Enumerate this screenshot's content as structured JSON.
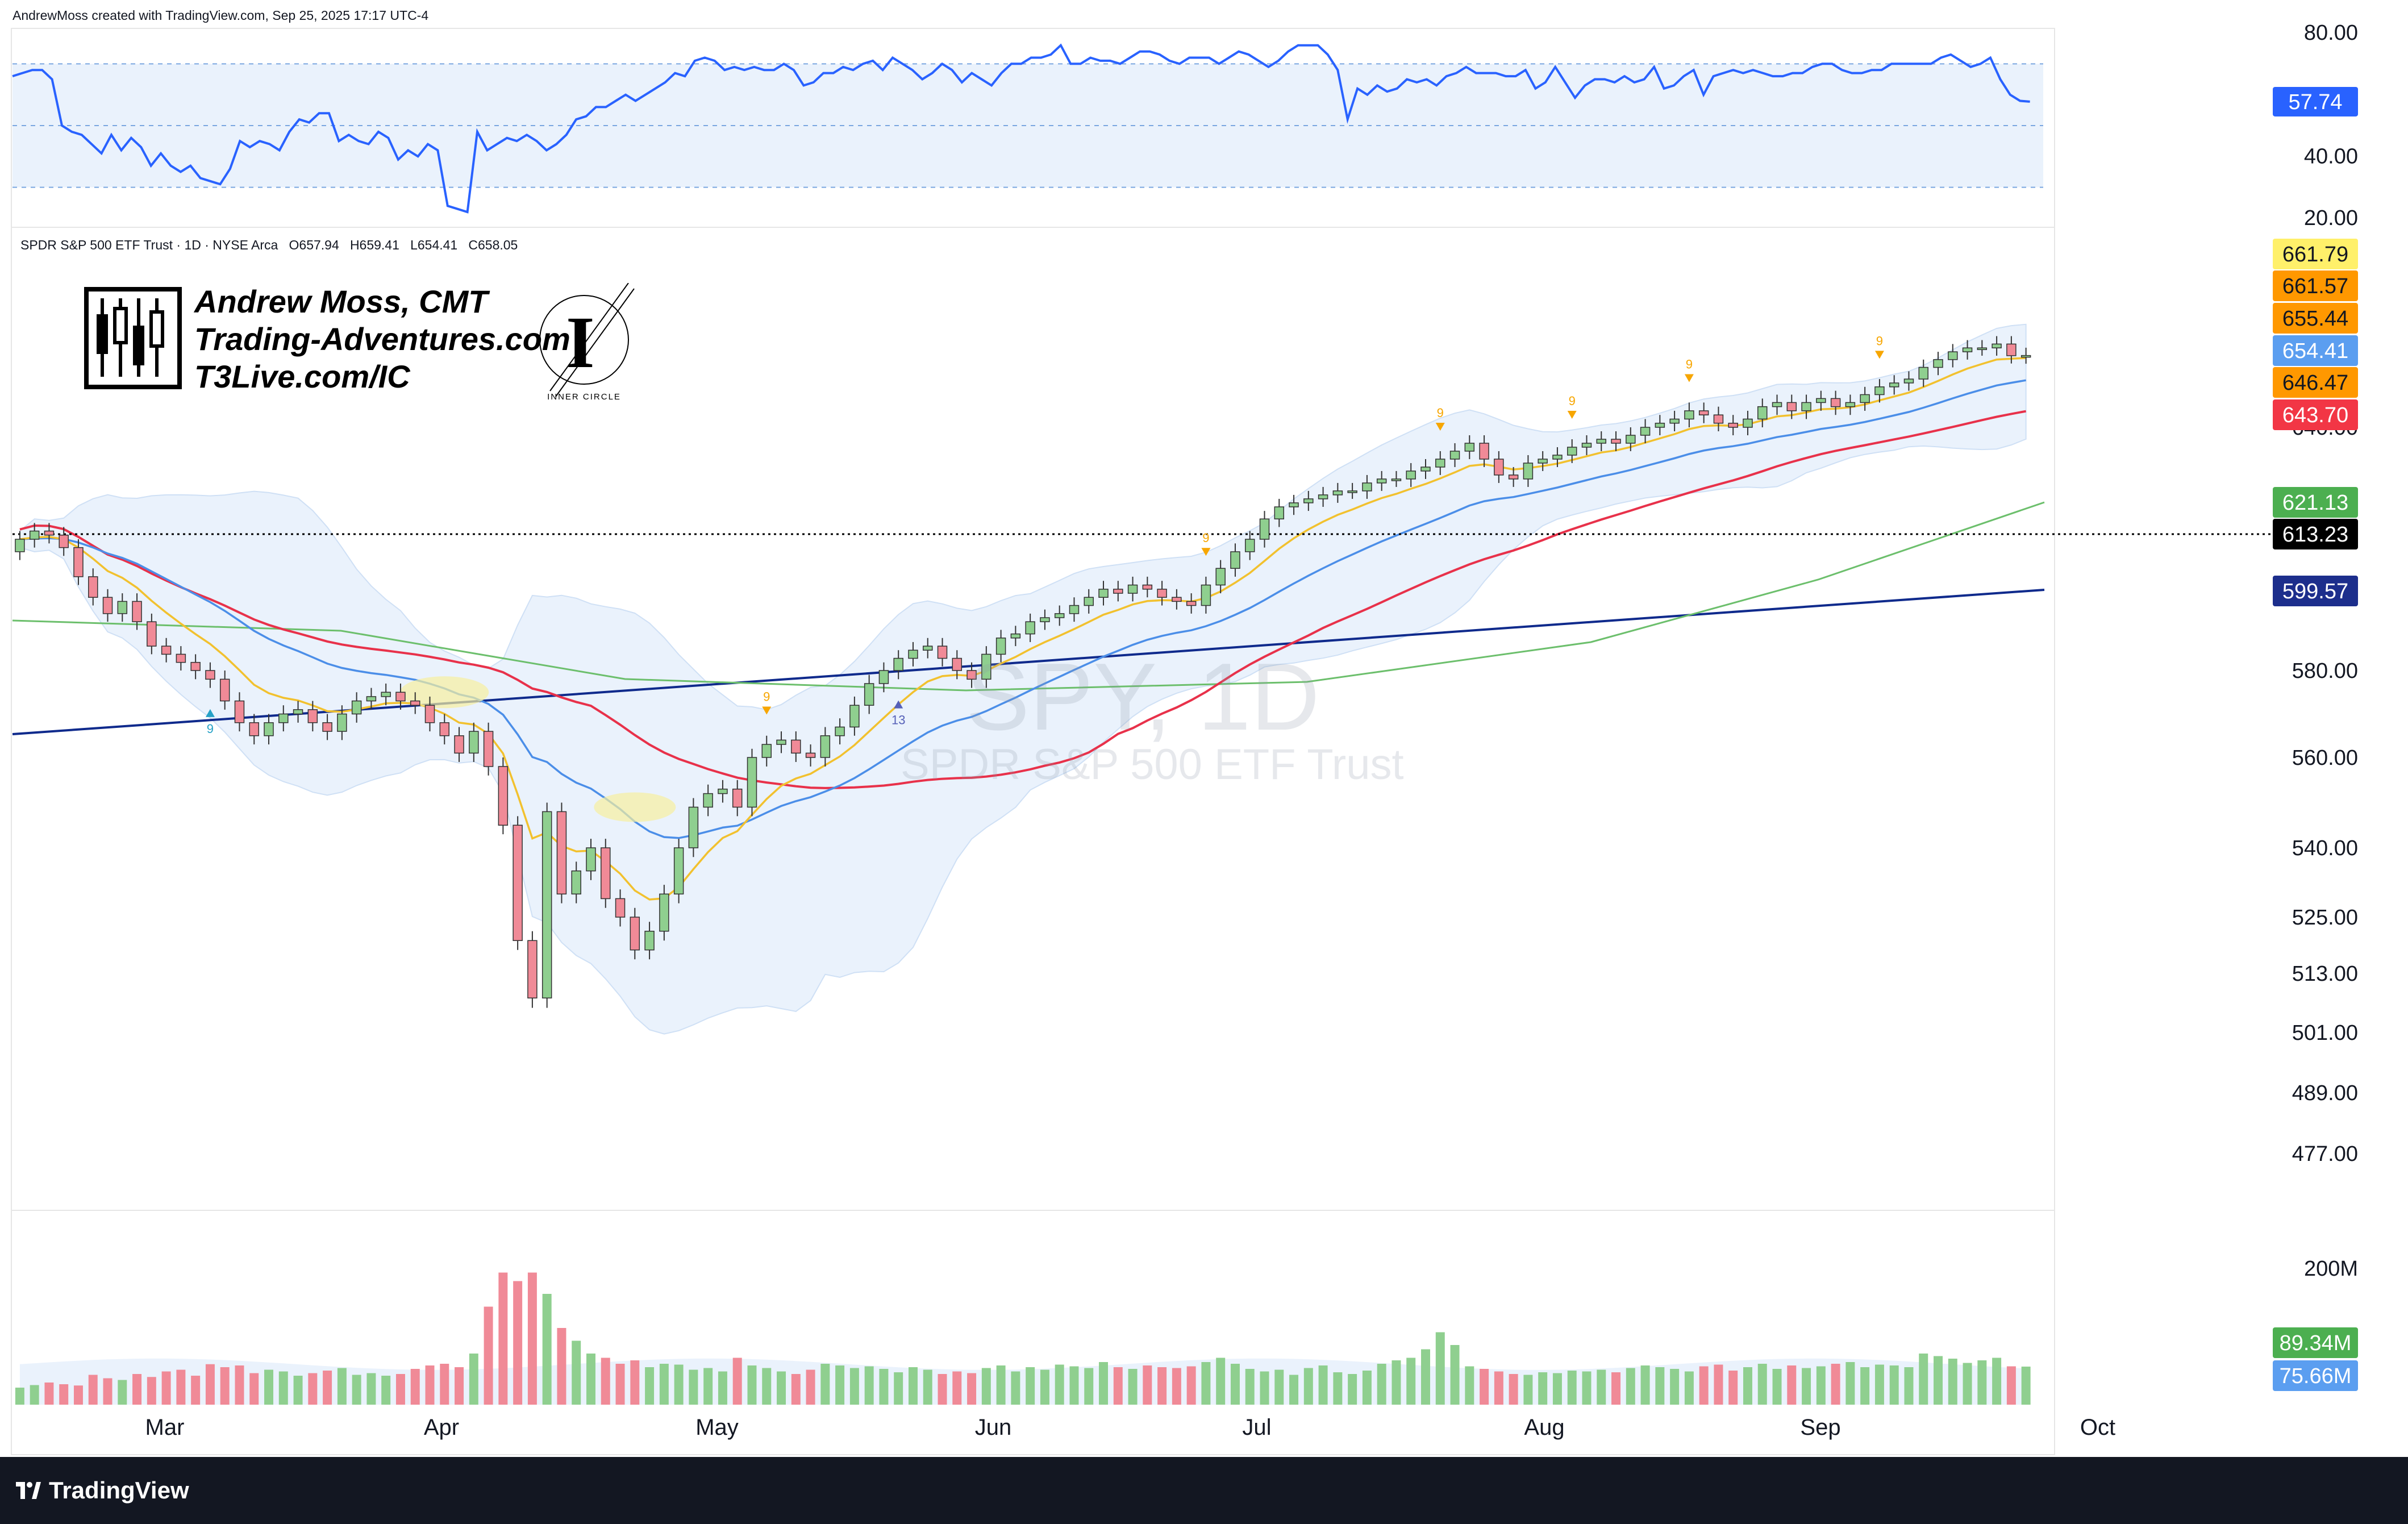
{
  "header": {
    "created_by": "AndrewMoss created with TradingView.com, Sep 25, 2025 17:17 UTC-4"
  },
  "symbol_info": {
    "name": "SPDR S&P 500 ETF Trust · 1D · NYSE Arca",
    "open": "O657.94",
    "high": "H659.41",
    "low": "L654.41",
    "close": "C658.05"
  },
  "watermark": {
    "ticker": "SPY, 1D",
    "description": "SPDR S&P 500 ETF Trust"
  },
  "author": {
    "line1": "Andrew Moss, CMT",
    "line2": "Trading-Adventures.com",
    "line3": "T3Live.com/IC",
    "badge_letter": "I",
    "badge_text": "INNER CIRCLE"
  },
  "footer": {
    "brand": "TradingView"
  },
  "colors": {
    "up": "#8fcf8f",
    "down": "#f08a97",
    "ema_yellow": "#f2c12e",
    "sma_blue": "#4b8ee8",
    "sma_red": "#e8314a",
    "sma_green": "#6cbf6c",
    "sma_navy": "#0f2a8c",
    "rsi_line": "#2962ff",
    "band_fill": "#eaf2fc"
  },
  "chart_data": [
    {
      "type": "line",
      "name": "RSI",
      "y_ticks": [
        "80.00",
        "40.00",
        "20.00"
      ],
      "ylim": [
        20,
        80
      ],
      "current_label": "57.74",
      "levels": [
        70,
        50,
        30
      ],
      "values": [
        66,
        67,
        68,
        68,
        65,
        50,
        48,
        47,
        44,
        41,
        47,
        42,
        46,
        43,
        37,
        41,
        37,
        35,
        37,
        33,
        32,
        31,
        36,
        45,
        43,
        45,
        44,
        42,
        48,
        52,
        51,
        54,
        54,
        45,
        47,
        45,
        44,
        48,
        46,
        39,
        42,
        40,
        44,
        42,
        24,
        23,
        22,
        48,
        42,
        44,
        46,
        45,
        47,
        45,
        42,
        44,
        47,
        52,
        53,
        56,
        56,
        58,
        60,
        58,
        60,
        62,
        64,
        67,
        66,
        71,
        72,
        71,
        68,
        69,
        68,
        69,
        68,
        68,
        70,
        68,
        63,
        64,
        67,
        67,
        69,
        68,
        70,
        71,
        68,
        72,
        70,
        68,
        65,
        67,
        70,
        68,
        64,
        67,
        65,
        63,
        67,
        70,
        70,
        72,
        72,
        73,
        76,
        70,
        70,
        72,
        71,
        71,
        70,
        72,
        74,
        74,
        73,
        71,
        70,
        72,
        72,
        72,
        70,
        72,
        74,
        73,
        71,
        69,
        71,
        74,
        76,
        76,
        76,
        73,
        68,
        52,
        62,
        60,
        63,
        61,
        62,
        65,
        64,
        65,
        63,
        66,
        67,
        69,
        67,
        67,
        67,
        66,
        66,
        68,
        62,
        64,
        69,
        64,
        59,
        63,
        65,
        65,
        64,
        66,
        64,
        65,
        69,
        62,
        63,
        66,
        68,
        60,
        66,
        67,
        68,
        67,
        68,
        67,
        66,
        66,
        67,
        67,
        69,
        70,
        70,
        68,
        67,
        67,
        68,
        68,
        70,
        70,
        70,
        70,
        70,
        72,
        73,
        71,
        69,
        70,
        72,
        65,
        60,
        58,
        57.74
      ]
    },
    {
      "type": "candlestick",
      "name": "SPY",
      "y_ticks": [
        "580.00",
        "560.00",
        "540.00",
        "525.00",
        "513.00",
        "501.00",
        "489.00",
        "477.00"
      ],
      "x_labels": [
        "Mar",
        "Apr",
        "May",
        "Jun",
        "Jul",
        "Aug",
        "Sep",
        "Oct"
      ],
      "price_labels": [
        {
          "text": "661.79",
          "bg": "#fff06a",
          "fg": "#131722"
        },
        {
          "text": "661.57",
          "bg": "#ff9800",
          "fg": "#131722"
        },
        {
          "text": "655.44",
          "bg": "#ff9800",
          "fg": "#131722"
        },
        {
          "text": "654.41",
          "bg": "#5b9ef0",
          "fg": "#ffffff"
        },
        {
          "text": "646.47",
          "bg": "#ff9800",
          "fg": "#131722"
        },
        {
          "text": "643.70",
          "bg": "#f23645",
          "fg": "#ffffff"
        },
        {
          "text": "621.13",
          "bg": "#4caf50",
          "fg": "#ffffff"
        },
        {
          "text": "613.23",
          "bg": "#000000",
          "fg": "#ffffff"
        },
        {
          "text": "599.57",
          "bg": "#1c2e8c",
          "fg": "#ffffff"
        }
      ],
      "hidden_tick": "640.00",
      "resistance_level": 613.23,
      "sequential_marks": [
        {
          "text": "9",
          "color": "#26a1c6",
          "direction": "up"
        },
        {
          "text": "9",
          "color": "#f7a600",
          "direction": "down"
        },
        {
          "text": "9",
          "color": "#f7a600",
          "direction": "down"
        },
        {
          "text": "13",
          "color": "#5560b8",
          "direction": "up"
        },
        {
          "text": "9",
          "color": "#f7a600",
          "direction": "down"
        },
        {
          "text": "9",
          "color": "#f7a600",
          "direction": "down"
        },
        {
          "text": "9",
          "color": "#f7a600",
          "direction": "down"
        },
        {
          "text": "9",
          "color": "#f7a600",
          "direction": "down"
        }
      ],
      "closes": [
        612,
        614,
        613,
        610,
        603,
        598,
        594,
        597,
        592,
        586,
        584,
        582,
        580,
        578,
        573,
        568,
        565,
        568,
        570,
        571,
        568,
        566,
        570,
        573,
        574,
        575,
        573,
        572,
        568,
        565,
        561,
        566,
        558,
        545,
        520,
        508,
        548,
        530,
        535,
        540,
        529,
        525,
        518,
        522,
        530,
        540,
        549,
        552,
        553,
        549,
        560,
        563,
        564,
        561,
        560,
        565,
        567,
        572,
        577,
        580,
        583,
        585,
        586,
        583,
        580,
        578,
        584,
        588,
        589,
        592,
        593,
        594,
        596,
        598,
        600,
        599,
        601,
        600,
        598,
        597,
        596,
        601,
        605,
        609,
        612,
        617,
        620,
        621,
        622,
        623,
        624,
        624,
        626,
        627,
        627,
        629,
        630,
        632,
        634,
        636,
        632,
        628,
        627,
        631,
        632,
        633,
        635,
        636,
        637,
        636,
        638,
        640,
        641,
        642,
        644,
        643,
        641,
        640,
        642,
        645,
        646,
        644,
        646,
        647,
        645,
        646,
        648,
        650,
        651,
        652,
        655,
        657,
        659,
        660,
        660,
        661,
        658,
        658.05
      ],
      "opens": [
        609,
        612,
        614,
        613,
        610,
        603,
        598,
        594,
        597,
        592,
        586,
        584,
        582,
        580,
        578,
        573,
        568,
        565,
        568,
        570,
        571,
        568,
        566,
        570,
        573,
        574,
        575,
        573,
        572,
        568,
        565,
        561,
        566,
        558,
        545,
        520,
        508,
        548,
        530,
        535,
        540,
        529,
        525,
        518,
        522,
        530,
        540,
        549,
        552,
        553,
        549,
        560,
        563,
        564,
        561,
        560,
        565,
        567,
        572,
        577,
        580,
        583,
        585,
        586,
        583,
        580,
        578,
        584,
        588,
        589,
        592,
        593,
        594,
        596,
        598,
        600,
        599,
        601,
        600,
        598,
        597,
        596,
        601,
        605,
        609,
        612,
        617,
        620,
        621,
        622,
        623,
        624,
        624,
        626,
        627,
        627,
        629,
        630,
        632,
        634,
        636,
        632,
        628,
        627,
        631,
        632,
        633,
        635,
        636,
        637,
        636,
        638,
        640,
        641,
        642,
        644,
        643,
        641,
        640,
        642,
        645,
        646,
        644,
        646,
        647,
        645,
        646,
        648,
        650,
        651,
        652,
        655,
        657,
        659,
        660,
        660,
        661,
        657.94
      ],
      "highs_offset": 2,
      "lows_offset": 2,
      "volume": {
        "y_ticks": [
          "200M"
        ],
        "current_labels": [
          {
            "text": "89.34M",
            "bg": "#4caf50",
            "fg": "#ffffff"
          },
          {
            "text": "75.66M",
            "bg": "#5b9ef0",
            "fg": "#ffffff"
          }
        ],
        "values_m": [
          40,
          46,
          52,
          48,
          45,
          70,
          62,
          58,
          72,
          65,
          78,
          82,
          68,
          95,
          88,
          92,
          74,
          82,
          78,
          68,
          74,
          80,
          86,
          70,
          74,
          68,
          72,
          84,
          92,
          96,
          88,
          120,
          230,
          310,
          290,
          310,
          260,
          180,
          150,
          120,
          110,
          96,
          104,
          88,
          96,
          94,
          82,
          86,
          78,
          110,
          92,
          86,
          78,
          72,
          82,
          96,
          92,
          86,
          90,
          84,
          76,
          88,
          82,
          72,
          78,
          74,
          86,
          92,
          78,
          88,
          82,
          94,
          90,
          86,
          100,
          88,
          84,
          92,
          88,
          86,
          90,
          100,
          110,
          96,
          84,
          78,
          82,
          70,
          86,
          92,
          76,
          72,
          80,
          96,
          104,
          110,
          130,
          170,
          140,
          90,
          84,
          78,
          72,
          70,
          76,
          74,
          80,
          78,
          82,
          76,
          86,
          92,
          88,
          84,
          78,
          90,
          94,
          80,
          88,
          96,
          84,
          92,
          86,
          90,
          96,
          100,
          88,
          94,
          92,
          88,
          120,
          114,
          108,
          98,
          104,
          110,
          90,
          89.34
        ]
      }
    }
  ]
}
